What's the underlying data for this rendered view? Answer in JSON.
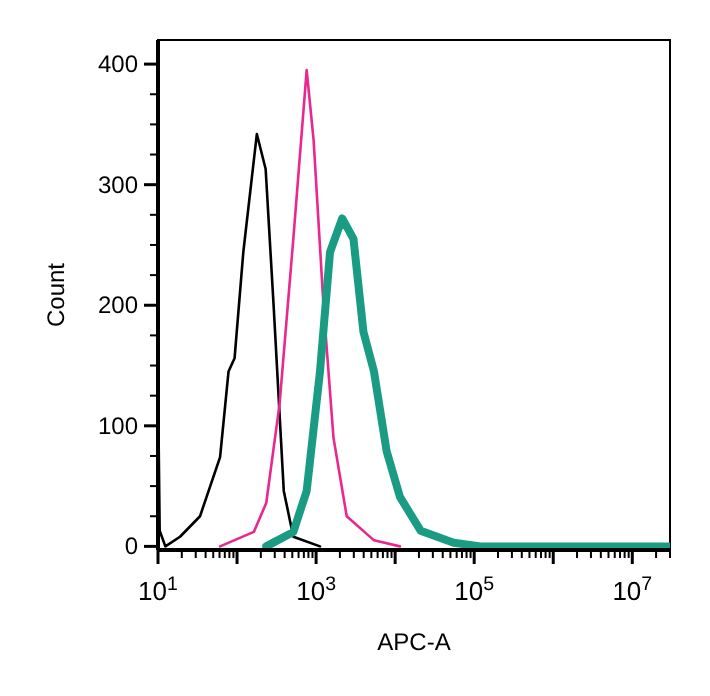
{
  "chart_data": {
    "type": "line",
    "xlabel": "APC-A",
    "ylabel": "Count",
    "log": "x",
    "xlim": [
      10,
      30000000
    ],
    "ylim": [
      -3,
      420
    ],
    "xticks": [
      {
        "value": 10,
        "label": "10$^{1}$"
      },
      {
        "value": 100,
        "label": null
      },
      {
        "value": 1000,
        "label": "10$^{3}$"
      },
      {
        "value": 10000,
        "label": null
      },
      {
        "value": 100000,
        "label": "10$^{5}$"
      },
      {
        "value": 1000000,
        "label": null
      },
      {
        "value": 10000000,
        "label": "10$^{7}$"
      }
    ],
    "yticks": [
      0,
      100,
      200,
      300,
      400
    ],
    "grid": false,
    "marker": "none",
    "line_style": "solid",
    "series": [
      {
        "color": "#000000",
        "x": [
          10,
          10.5,
          12.4,
          19,
          34,
          61,
          78,
          93,
          120,
          178,
          230,
          290,
          390,
          515,
          1120
        ],
        "values": [
          135,
          13,
          0,
          8,
          25,
          74,
          145,
          156,
          244,
          342,
          313,
          200,
          46,
          8,
          0
        ]
      },
      {
        "color": "#e8288f",
        "x": [
          61,
          163,
          234,
          345,
          515,
          760,
          930,
          1240,
          1660,
          2440,
          5400,
          11500
        ],
        "values": [
          0,
          12,
          36,
          118,
          255,
          395,
          337,
          200,
          90,
          25,
          5,
          0
        ]
      },
      {
        "color": "#1a9c84",
        "x": [
          234,
          515,
          760,
          1120,
          1500,
          2140,
          2970,
          3970,
          5400,
          7800,
          11500,
          21000,
          55000,
          120000,
          30000000
        ],
        "values": [
          0,
          12,
          46,
          145,
          244,
          272,
          255,
          178,
          145,
          79,
          41,
          13,
          3,
          0,
          0
        ]
      }
    ]
  }
}
